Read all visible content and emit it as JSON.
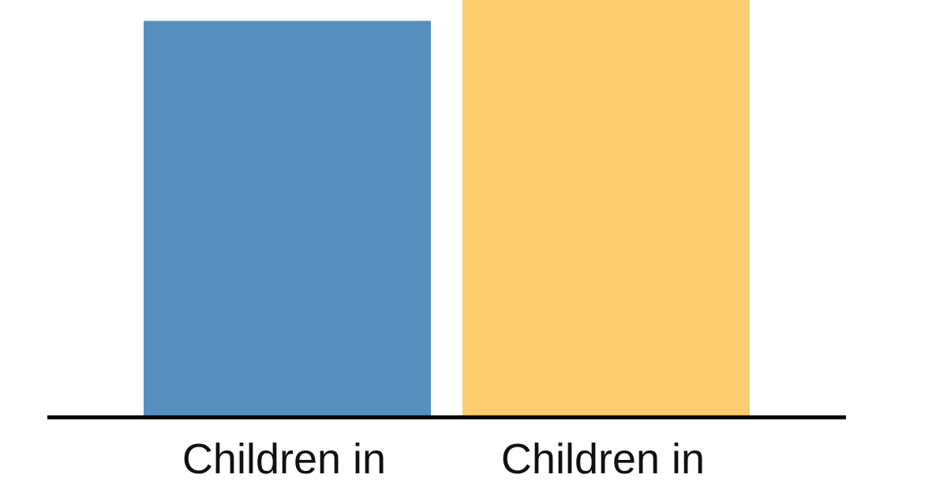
{
  "chart_data": {
    "type": "bar",
    "categories": [
      "Children in",
      "Children in"
    ],
    "values": [
      95,
      100
    ],
    "colors": [
      "#568fbd",
      "#fccc6e"
    ],
    "axis_color": "#000000",
    "grid": false,
    "legend": "none",
    "title": "",
    "xlabel": "",
    "ylabel": ""
  }
}
